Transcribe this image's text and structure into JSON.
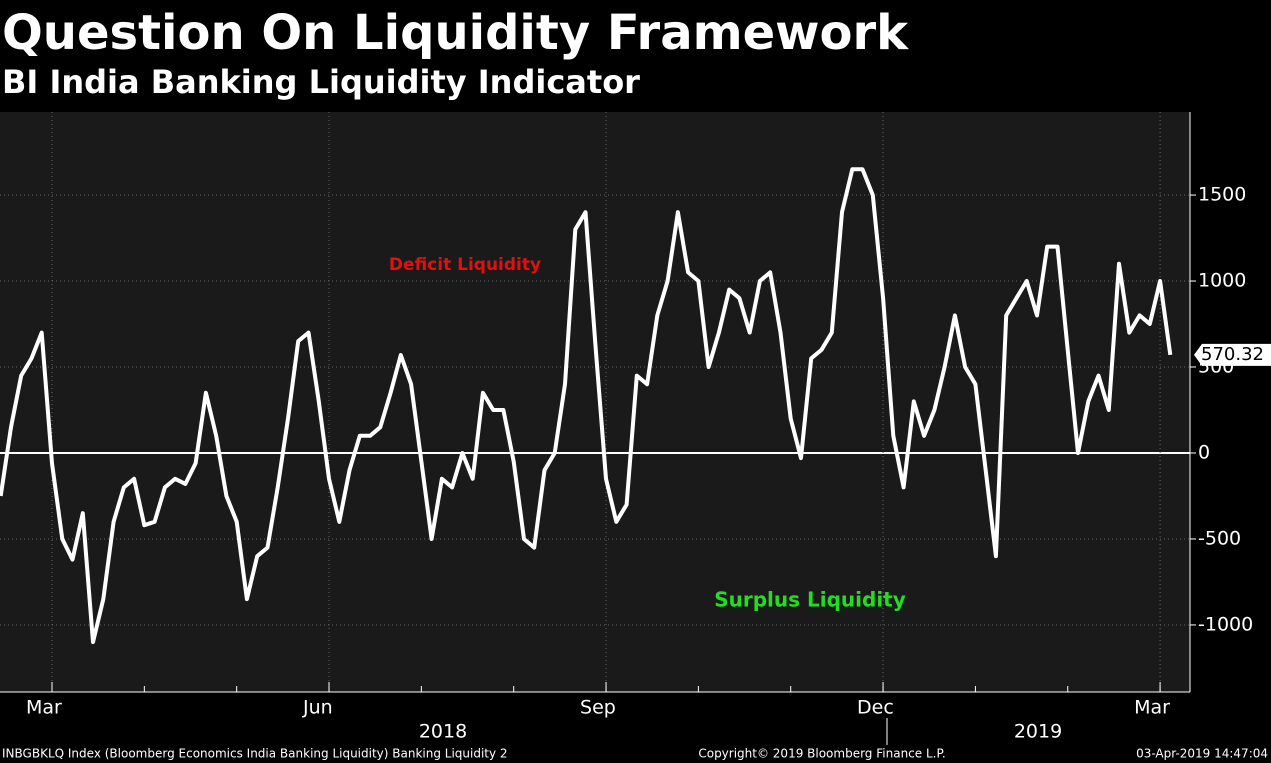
{
  "chart_data": {
    "type": "line",
    "title": "Question On Liquidity Framework",
    "subtitle": "BI India Banking Liquidity Indicator",
    "annotations": [
      {
        "text": "Deficit Liquidity",
        "color": "#e01010"
      },
      {
        "text": "Surplus Liquidity",
        "color": "#22dd22"
      }
    ],
    "categories": [
      null,
      null,
      null,
      null,
      null,
      "Mar",
      null,
      null,
      null,
      null,
      null,
      null,
      null,
      null,
      null,
      null,
      null,
      null,
      null,
      null,
      null,
      null,
      null,
      null,
      null,
      null,
      null,
      null,
      null,
      null,
      null,
      null,
      "Jun",
      null,
      null,
      null,
      null,
      null,
      null,
      null,
      null,
      null,
      null,
      null,
      null,
      null,
      null,
      null,
      null,
      null,
      null,
      null,
      null,
      null,
      null,
      null,
      null,
      null,
      null,
      "Sep",
      null,
      null,
      null,
      null,
      null,
      null,
      null,
      null,
      null,
      null,
      null,
      null,
      null,
      null,
      null,
      null,
      null,
      null,
      null,
      null,
      null,
      null,
      null,
      null,
      null,
      null,
      "Dec",
      null,
      null,
      null,
      null,
      null,
      null,
      null,
      null,
      null,
      null,
      null,
      null,
      null,
      null,
      null,
      null,
      null,
      null,
      null,
      null,
      null,
      null,
      null,
      null,
      null,
      null,
      "Mar",
      null
    ],
    "x_groups": [
      "2018",
      "2019"
    ],
    "series": [
      {
        "name": "INBGBKLQ",
        "color": "#ffffff",
        "values": [
          -250,
          150,
          450,
          550,
          700,
          -60,
          -500,
          -620,
          -350,
          -1100,
          -850,
          -400,
          -200,
          -150,
          -420,
          -400,
          -200,
          -150,
          -180,
          -60,
          350,
          100,
          -250,
          -400,
          -850,
          -600,
          -550,
          -200,
          200,
          650,
          700,
          300,
          -150,
          -400,
          -100,
          100,
          100,
          150,
          350,
          570,
          400,
          -50,
          -500,
          -150,
          -200,
          0,
          -150,
          350,
          250,
          250,
          -50,
          -500,
          -550,
          -100,
          0,
          400,
          1300,
          1400,
          600,
          -150,
          -400,
          -300,
          450,
          400,
          800,
          1000,
          1400,
          1050,
          1000,
          500,
          700,
          950,
          900,
          700,
          1000,
          1050,
          700,
          200,
          -30,
          550,
          600,
          700,
          1400,
          1650,
          1650,
          1500,
          900,
          100,
          -200,
          300,
          100,
          250,
          500,
          800,
          500,
          400,
          -100,
          -600,
          800,
          900,
          1000,
          800,
          1200,
          1200,
          600,
          0,
          300,
          450,
          250,
          1100,
          700,
          800,
          750,
          1000,
          570.32
        ]
      }
    ],
    "ylim": [
      -1390,
      1983
    ],
    "yticks": [
      -1000,
      -500,
      0,
      500,
      1000,
      1500
    ],
    "grid": true,
    "footer": {
      "source": "INBGBKLQ Index (Bloomberg Economics India Banking Liquidity) Banking Liquidity 2",
      "copyright": "Copyright© 2019 Bloomberg Finance L.P.",
      "timestamp": "03-Apr-2019 14:47:04"
    }
  }
}
